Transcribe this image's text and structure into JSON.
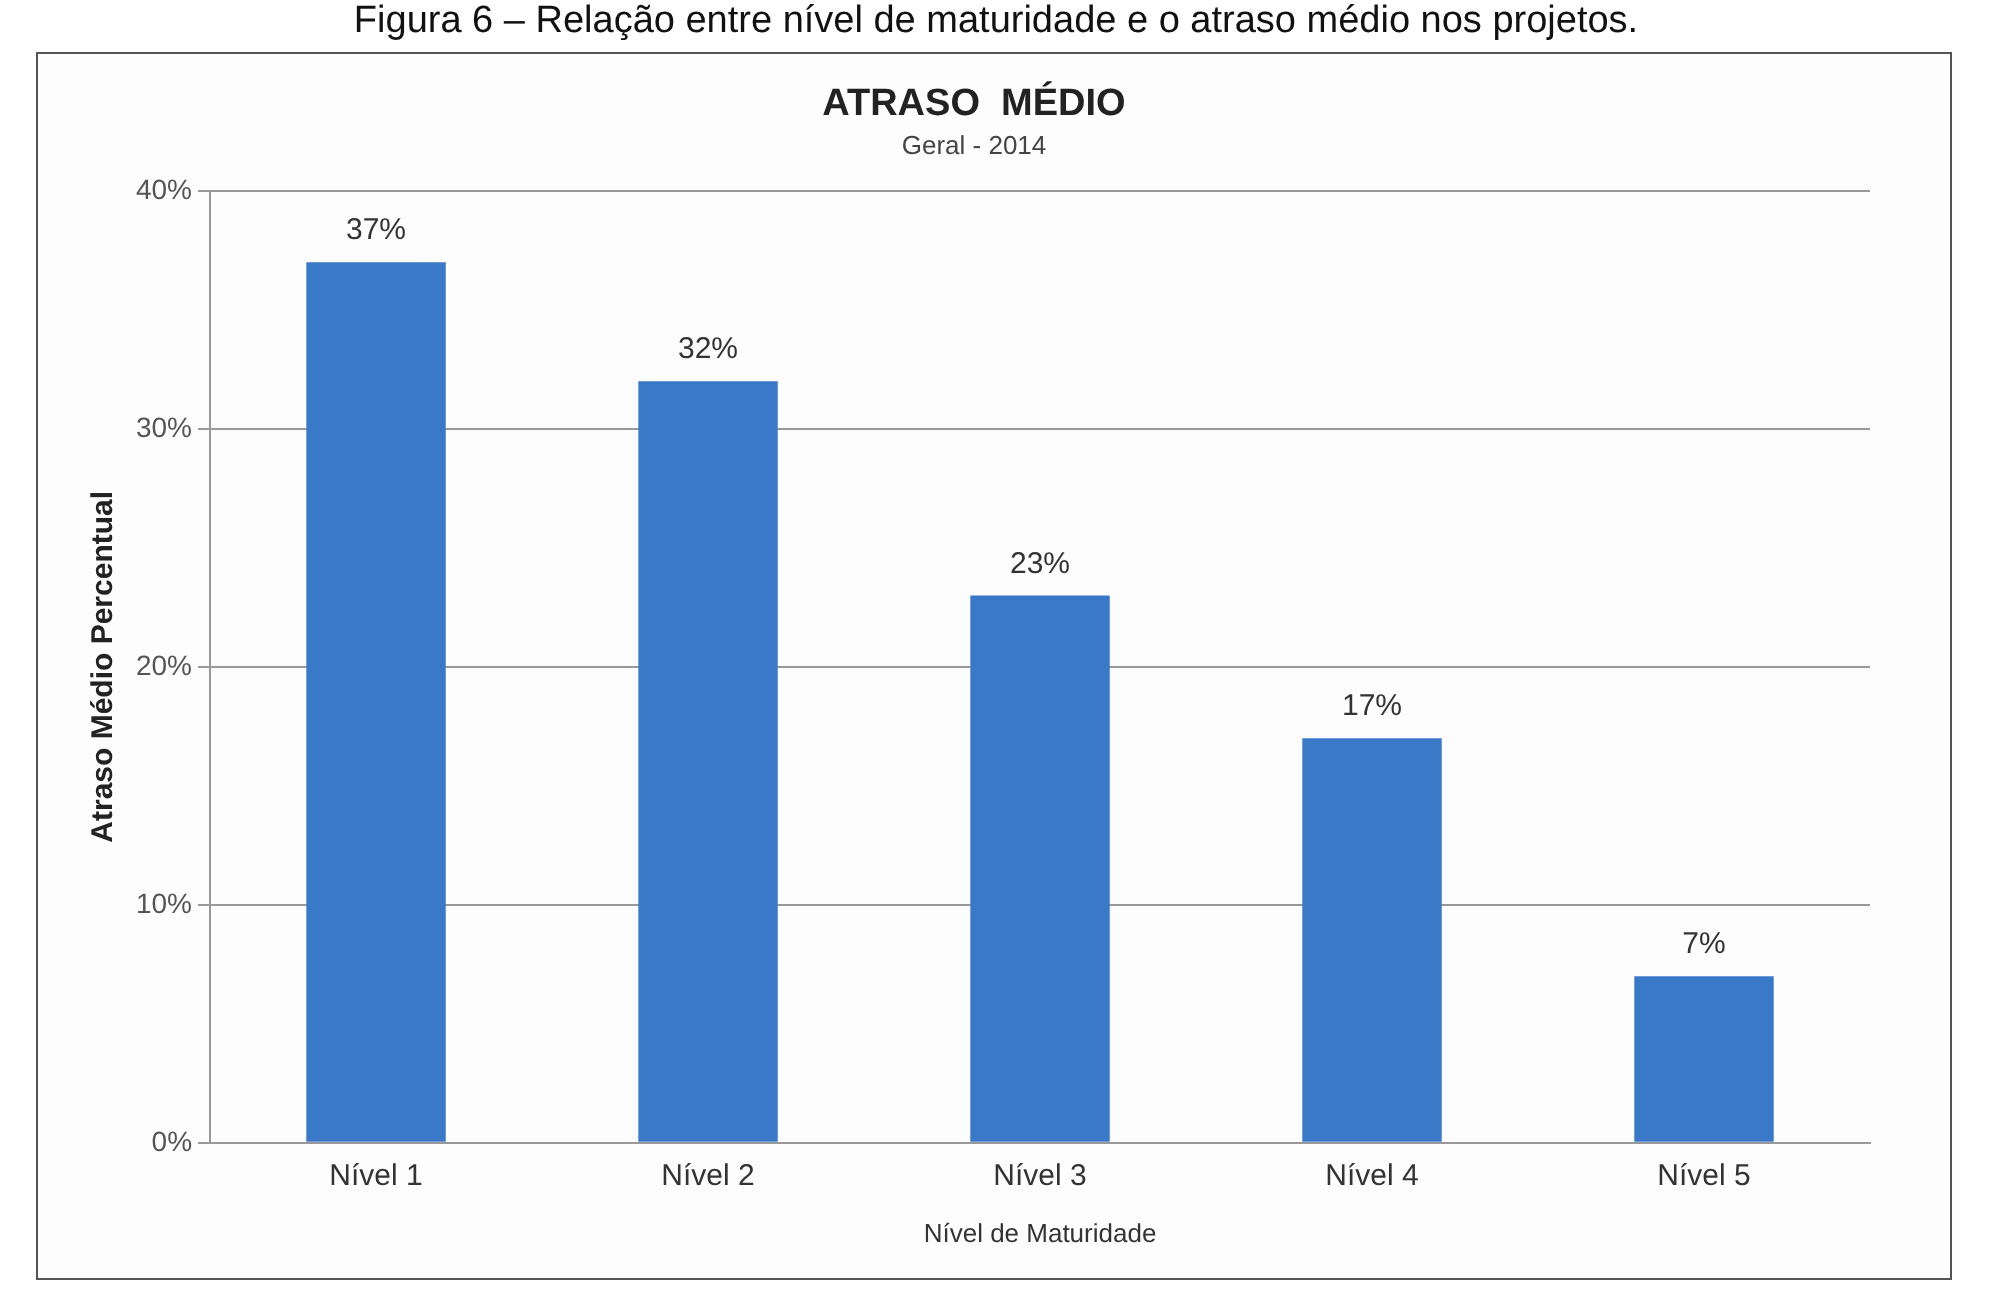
{
  "chart_data": {
    "type": "bar",
    "title": "ATRASO  MÉDIO",
    "subtitle": "Geral - 2014",
    "xlabel": "Nível de Maturidade",
    "ylabel": "Atraso Médio Percentual",
    "annotations": [
      "Figura 6 – Relação entre nível de maturidade e o atraso médio nos projetos."
    ],
    "categories": [
      "Nível 1",
      "Nível 2",
      "Nível 3",
      "Nível 4",
      "Nível 5"
    ],
    "values": [
      37,
      32,
      23,
      17,
      7
    ],
    "value_labels": [
      "37%",
      "32%",
      "23%",
      "17%",
      "7%"
    ],
    "color": "#3a78c8",
    "ylim": [
      0,
      40
    ],
    "yticks": [
      {
        "value": 0,
        "label": "0%"
      },
      {
        "value": 10,
        "label": "10%"
      },
      {
        "value": 20,
        "label": "20%"
      },
      {
        "value": 30,
        "label": "30%"
      },
      {
        "value": 40,
        "label": "40%"
      }
    ],
    "grid": "y",
    "legend": false
  }
}
